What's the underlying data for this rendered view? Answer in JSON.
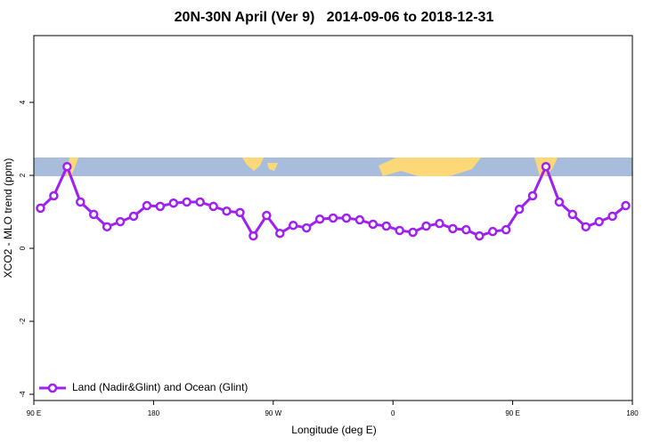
{
  "chart_data": {
    "type": "line",
    "title": "20N-30N April (Ver 9)   2014-09-06 to 2018-12-31",
    "x_label": "Longitude (deg E)",
    "y_label": "XCO2 - MLO trend (ppm)",
    "x": [
      95,
      105,
      115,
      125,
      135,
      145,
      155,
      165,
      175,
      185,
      195,
      205,
      215,
      225,
      235,
      245,
      255,
      265,
      275,
      285,
      295,
      305,
      315,
      325,
      335,
      345,
      355,
      365,
      375,
      385,
      395,
      405,
      415,
      425,
      435,
      445,
      455,
      465,
      475,
      485,
      495,
      505,
      515,
      525,
      535
    ],
    "series": [
      {
        "name": "Land (Nadir&Glint) and Ocean (Glint)",
        "color": "#a020f0",
        "values": [
          1.1,
          1.44,
          2.24,
          1.27,
          0.93,
          0.59,
          0.73,
          0.88,
          1.17,
          1.15,
          1.24,
          1.27,
          1.27,
          1.15,
          1.02,
          0.98,
          0.34,
          0.9,
          0.41,
          0.63,
          0.56,
          0.8,
          0.83,
          0.83,
          0.78,
          0.66,
          0.61,
          0.49,
          0.44,
          0.61,
          0.68,
          0.54,
          0.51,
          0.34,
          0.46,
          0.51,
          1.07,
          1.44,
          2.24,
          1.27,
          0.93,
          0.59,
          0.73,
          0.88,
          1.17
        ]
      }
    ],
    "xlim": [
      90,
      540
    ],
    "xticks": [
      {
        "value": 90,
        "label": "90 E"
      },
      {
        "value": 180,
        "label": "180"
      },
      {
        "value": 270,
        "label": "90 W"
      },
      {
        "value": 360,
        "label": "0"
      },
      {
        "value": 450,
        "label": "90 E"
      },
      {
        "value": 540,
        "label": "180"
      }
    ],
    "ylim": [
      -4.17,
      5.83
    ],
    "yticks": [
      -4,
      -2,
      0,
      2,
      4
    ],
    "legend": "bottom-left"
  }
}
